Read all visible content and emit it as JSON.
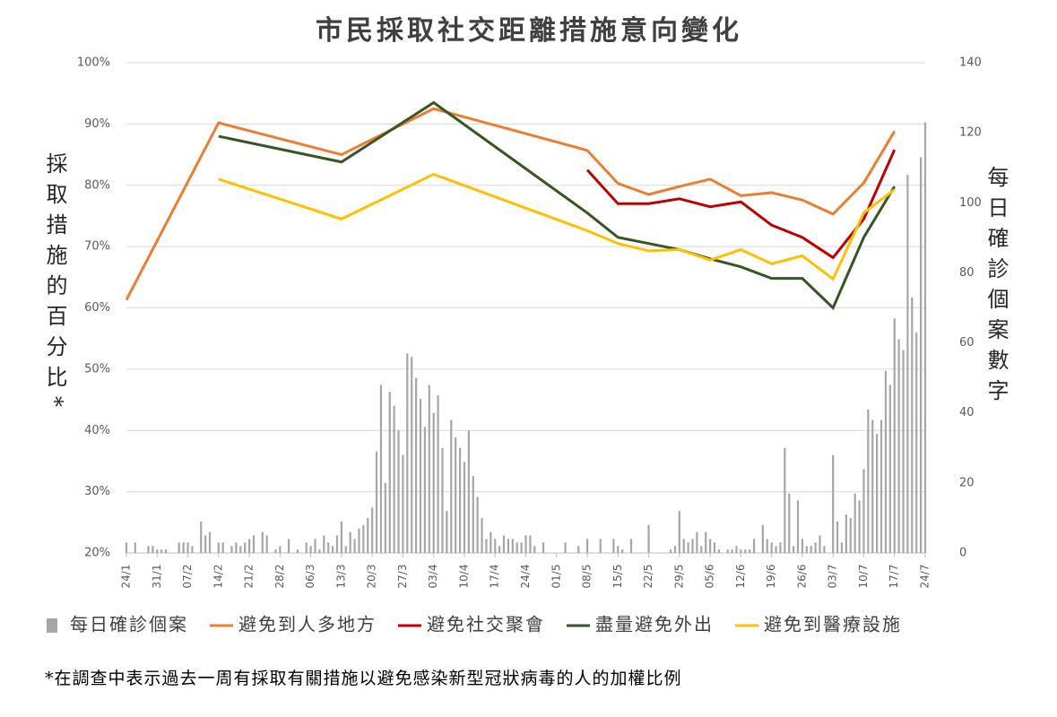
{
  "chart_data": {
    "type": "combo",
    "title": "市民採取社交距離措施意向變化",
    "y_label": "採取措施的百分比*",
    "y2_label": "每日確診個案數字",
    "footnote": "*在調查中表示過去一周有採取有關措施以避免感染新型冠狀病毒的人的加權比例",
    "categories": [
      "24/1",
      null,
      null,
      null,
      null,
      null,
      null,
      "31/1",
      null,
      null,
      null,
      null,
      null,
      null,
      "07/2",
      null,
      null,
      null,
      null,
      null,
      null,
      "14/2",
      null,
      null,
      null,
      null,
      null,
      null,
      "21/2",
      null,
      null,
      null,
      null,
      null,
      null,
      "28/2",
      null,
      null,
      null,
      null,
      null,
      null,
      "06/3",
      null,
      null,
      null,
      null,
      null,
      null,
      "13/3",
      null,
      null,
      null,
      null,
      null,
      null,
      "20/3",
      null,
      null,
      null,
      null,
      null,
      null,
      "27/3",
      null,
      null,
      null,
      null,
      null,
      null,
      "03/4",
      null,
      null,
      null,
      null,
      null,
      null,
      "10/4",
      null,
      null,
      null,
      null,
      null,
      null,
      "17/4",
      null,
      null,
      null,
      null,
      null,
      null,
      "24/4",
      null,
      null,
      null,
      null,
      null,
      null,
      "01/5",
      null,
      null,
      null,
      null,
      null,
      null,
      "08/5",
      null,
      null,
      null,
      null,
      null,
      null,
      "15/5",
      null,
      null,
      null,
      null,
      null,
      null,
      "22/5",
      null,
      null,
      null,
      null,
      null,
      null,
      "29/5",
      null,
      null,
      null,
      null,
      null,
      null,
      "05/6",
      null,
      null,
      null,
      null,
      null,
      null,
      "12/6",
      null,
      null,
      null,
      null,
      null,
      null,
      "19/6",
      null,
      null,
      null,
      null,
      null,
      null,
      "26/6",
      null,
      null,
      null,
      null,
      null,
      null,
      "03/7",
      null,
      null,
      null,
      null,
      null,
      null,
      "10/7",
      null,
      null,
      null,
      null,
      null,
      null,
      "17/7",
      null,
      null,
      null,
      null,
      null,
      null,
      "24/7"
    ],
    "series": [
      {
        "name": "每日確診個案",
        "type": "bar",
        "axis": "y2",
        "color": "#a6a6a6",
        "values": [
          3,
          0,
          3,
          0,
          0,
          2,
          2,
          1,
          1,
          1,
          0,
          0,
          3,
          3,
          3,
          2,
          0,
          9,
          5,
          6,
          0,
          3,
          3,
          0,
          2,
          3,
          2,
          3,
          4,
          5,
          0,
          6,
          5,
          0,
          1,
          2,
          0,
          4,
          0,
          1,
          0,
          3,
          2,
          4,
          1,
          5,
          3,
          2,
          5,
          9,
          2,
          6,
          4,
          7,
          8,
          10,
          13,
          29,
          48,
          20,
          46,
          42,
          35,
          28,
          57,
          56,
          50,
          44,
          36,
          48,
          40,
          45,
          30,
          12,
          38,
          33,
          30,
          26,
          35,
          22,
          16,
          10,
          4,
          6,
          4,
          2,
          5,
          4,
          4,
          3,
          3,
          5,
          5,
          2,
          0,
          3,
          0,
          0,
          0,
          0,
          3,
          0,
          0,
          2,
          0,
          4,
          0,
          0,
          4,
          0,
          0,
          4,
          2,
          1,
          0,
          4,
          0,
          0,
          0,
          8,
          0,
          0,
          0,
          0,
          1,
          2,
          12,
          4,
          3,
          4,
          6,
          2,
          6,
          4,
          3,
          1,
          0,
          1,
          1,
          2,
          1,
          1,
          1,
          4,
          0,
          8,
          4,
          3,
          2,
          3,
          30,
          17,
          2,
          15,
          4,
          2,
          2,
          3,
          5,
          2,
          0,
          28,
          9,
          3,
          11,
          10,
          17,
          15,
          24,
          41,
          38,
          34,
          38,
          52,
          48,
          67,
          61,
          58,
          108,
          73,
          63,
          113,
          123
        ]
      },
      {
        "name": "避免到人多地方",
        "type": "line",
        "color": "#ed7d31",
        "x": [
          "24/1",
          "14/2",
          "13/3",
          "03/4",
          "08/5",
          "15/5",
          "22/5",
          "29/5",
          "05/6",
          "12/6",
          "19/6",
          "26/6",
          "03/7",
          "10/7",
          "17/7"
        ],
        "values": [
          61.3,
          90.2,
          85,
          92.5,
          85.7,
          80.3,
          78.5,
          79.8,
          81,
          78.3,
          78.8,
          77.6,
          75.3,
          80.4,
          88.8
        ]
      },
      {
        "name": "避免社交聚會",
        "type": "line",
        "color": "#c00000",
        "x": [
          "08/5",
          "15/5",
          "22/5",
          "29/5",
          "05/6",
          "12/6",
          "19/6",
          "26/6",
          "03/7",
          "10/7",
          "17/7"
        ],
        "values": [
          82.5,
          77,
          77,
          77.8,
          76.5,
          77.3,
          73.5,
          71.5,
          68.2,
          74.5,
          85.8
        ]
      },
      {
        "name": "盡量避免外出",
        "type": "line",
        "color": "#375623",
        "x": [
          "14/2",
          "13/3",
          "03/4",
          "08/5",
          "15/5",
          "22/5",
          "29/5",
          "05/6",
          "12/6",
          "19/6",
          "26/6",
          "03/7",
          "10/7",
          "17/7"
        ],
        "values": [
          88,
          83.8,
          93.5,
          75.5,
          71.5,
          70.5,
          69.5,
          68,
          66.7,
          64.8,
          64.8,
          60,
          71.5,
          79.8
        ]
      },
      {
        "name": "避免到醫療設施",
        "type": "line",
        "color": "#ffc000",
        "x": [
          "14/2",
          "13/3",
          "03/4",
          "08/5",
          "15/5",
          "22/5",
          "29/5",
          "05/6",
          "12/6",
          "19/6",
          "26/6",
          "03/7",
          "10/7",
          "17/7"
        ],
        "values": [
          81,
          74.5,
          81.8,
          72.6,
          70.5,
          69.3,
          69.5,
          67.8,
          69.5,
          67.2,
          68.5,
          64.7,
          75.5,
          79.3
        ]
      }
    ],
    "ylim": [
      20,
      100
    ],
    "yticks": [
      {
        "value": 20,
        "label": "20%"
      },
      {
        "value": 30,
        "label": "30%"
      },
      {
        "value": 40,
        "label": "40%"
      },
      {
        "value": 50,
        "label": "50%"
      },
      {
        "value": 60,
        "label": "60%"
      },
      {
        "value": 70,
        "label": "70%"
      },
      {
        "value": 80,
        "label": "80%"
      },
      {
        "value": 90,
        "label": "90%"
      },
      {
        "value": 100,
        "label": "100%"
      }
    ],
    "y2lim": [
      0,
      140
    ],
    "y2ticks": [
      0,
      20,
      40,
      60,
      80,
      100,
      120,
      140
    ],
    "grid": true,
    "legend": "bottom"
  }
}
